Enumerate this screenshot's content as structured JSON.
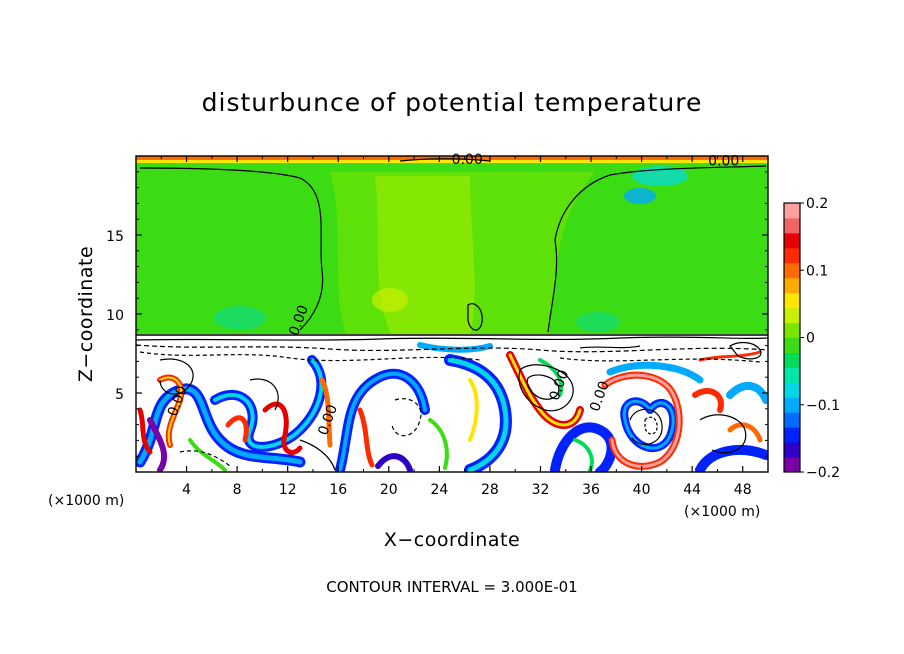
{
  "chart_data": {
    "type": "heatmap",
    "title": "disturbunce of potential temperature",
    "xlabel": "X−coordinate",
    "ylabel": "Z−coordinate",
    "x_unit_left": "(×1000 m)",
    "x_unit_right": "(×1000 m)",
    "x_ticks": [
      4,
      8,
      12,
      16,
      20,
      24,
      28,
      32,
      36,
      40,
      44,
      48
    ],
    "x_tick_labels": [
      "4",
      "8",
      "12",
      "16",
      "20",
      "24",
      "28",
      "32",
      "36",
      "40",
      "44",
      "48"
    ],
    "xlim": [
      0,
      50
    ],
    "y_ticks": [
      5,
      10,
      15
    ],
    "y_tick_labels": [
      "5",
      "10",
      "15"
    ],
    "ylim": [
      0,
      20
    ],
    "colorbar": {
      "range": [
        -0.2,
        0.2
      ],
      "tick_values": [
        -0.2,
        -0.1,
        0,
        0.1,
        0.2
      ],
      "tick_labels": [
        "−0.2",
        "−0.1",
        "0",
        "0.1",
        "0.2"
      ],
      "colors": [
        "#7a00a8",
        "#2d00c8",
        "#0022ff",
        "#006cff",
        "#00aaff",
        "#00d8e8",
        "#00e6a8",
        "#00dc5a",
        "#3cdc14",
        "#7ae600",
        "#c8f000",
        "#ffe600",
        "#ffaa00",
        "#ff6a00",
        "#ff2a00",
        "#e60000",
        "#f06464",
        "#ffa0a0"
      ]
    },
    "contour_labels": [
      {
        "text": "0.00",
        "x": 26.2,
        "z": 19.5
      },
      {
        "text": "0.00",
        "x": 46.5,
        "z": 19.4
      },
      {
        "text": "0.00",
        "x": 13.2,
        "z": 9.5
      },
      {
        "text": "0.00",
        "x": 3.6,
        "z": 4.4
      },
      {
        "text": "0.00",
        "x": 15.5,
        "z": 3.2
      },
      {
        "text": "0.00",
        "x": 33.8,
        "z": 5.4
      },
      {
        "text": "0.00",
        "x": 37.0,
        "z": 4.7
      }
    ],
    "contour_interval": "CONTOUR INTERVAL = 3.000E-01"
  }
}
